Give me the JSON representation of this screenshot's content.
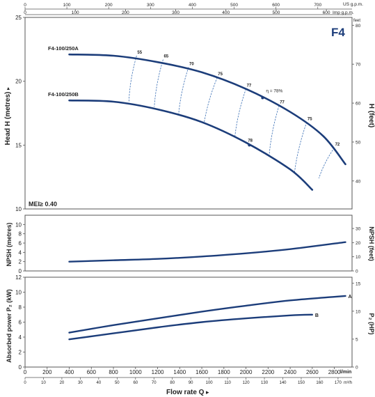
{
  "chart_data": {
    "type": "line",
    "model": "F4",
    "mei": "MEI≥ 0.40",
    "top_axes": {
      "us_label": "US g.p.m.",
      "us_ticks": [
        0,
        100,
        200,
        300,
        400,
        500,
        600,
        700
      ],
      "imp_label": "Imp g.p.m.",
      "imp_ticks": [
        0,
        100,
        200,
        300,
        400,
        500,
        600
      ]
    },
    "head_panel": {
      "ylabel": "Head H  (metres)",
      "ylabel_arrow": "▸",
      "ylim": [
        10,
        25
      ],
      "yticks": [
        10,
        15,
        20,
        25
      ],
      "y2label": "H (feet)",
      "y2_unit": "feet",
      "y2ticks": [
        40,
        50,
        60,
        70,
        80,
        90
      ],
      "efficiency_prefix": "η = 78%",
      "curves": [
        {
          "name": "F4-100/250A",
          "x": [
            400,
            800,
            1200,
            1600,
            2000,
            2400,
            2700,
            2900
          ],
          "y": [
            22.1,
            22.0,
            21.5,
            20.7,
            19.4,
            17.6,
            15.7,
            13.5
          ]
        },
        {
          "name": "F4-100/250B",
          "x": [
            400,
            800,
            1200,
            1600,
            2000,
            2400,
            2600
          ],
          "y": [
            18.5,
            18.4,
            17.8,
            16.8,
            15.2,
            13.1,
            11.5
          ]
        }
      ],
      "iso_efficiency": [
        {
          "label": "55",
          "top": [
            1010,
            22.0
          ],
          "bottom": [
            940,
            18.4
          ]
        },
        {
          "label": "65",
          "top": [
            1250,
            21.7
          ],
          "bottom": [
            1170,
            18.0
          ]
        },
        {
          "label": "70",
          "top": [
            1480,
            21.1
          ],
          "bottom": [
            1390,
            17.4
          ]
        },
        {
          "label": "75",
          "top": [
            1740,
            20.3
          ],
          "bottom": [
            1620,
            16.7
          ]
        },
        {
          "label": "77",
          "top": [
            2000,
            19.4
          ],
          "bottom": [
            1900,
            15.7
          ]
        },
        {
          "label": "77",
          "top": [
            2300,
            18.1
          ],
          "bottom": [
            2210,
            14.2
          ]
        },
        {
          "label": "75",
          "top": [
            2550,
            16.8
          ],
          "bottom": [
            2440,
            12.9
          ]
        },
        {
          "label": "72",
          "top": [
            2800,
            14.8
          ],
          "bottom": [
            2660,
            12.4
          ]
        }
      ],
      "markers": [
        {
          "label": "78",
          "at": [
            2150,
            18.7
          ],
          "curve": "A"
        },
        {
          "label": "78",
          "at": [
            2030,
            15.0
          ],
          "curve": "B"
        }
      ]
    },
    "npsh_panel": {
      "ylabel": "NPSH  (metres)",
      "y2label": "NPSH  (feet)",
      "ylim": [
        0,
        12
      ],
      "yticks": [
        0,
        2,
        4,
        6,
        8,
        10
      ],
      "y2ticks": [
        0,
        10,
        20,
        30
      ],
      "x": [
        400,
        800,
        1200,
        1600,
        2000,
        2400,
        2900
      ],
      "y": [
        2.0,
        2.3,
        2.6,
        3.1,
        3.8,
        4.7,
        6.2
      ]
    },
    "power_panel": {
      "ylabel": "Absorbed power  P₂  (kW)",
      "y2label": "P₂  (HP)",
      "ylim": [
        0,
        12
      ],
      "yticks": [
        0,
        2,
        4,
        6,
        8,
        10,
        12
      ],
      "y2ticks": [
        0,
        5,
        10,
        15
      ],
      "series": [
        {
          "name": "A",
          "x": [
            400,
            800,
            1200,
            1600,
            2000,
            2400,
            2900
          ],
          "y": [
            4.6,
            5.6,
            6.5,
            7.4,
            8.2,
            8.9,
            9.5
          ]
        },
        {
          "name": "B",
          "x": [
            400,
            800,
            1200,
            1600,
            2000,
            2400,
            2600
          ],
          "y": [
            3.7,
            4.5,
            5.3,
            6.0,
            6.5,
            6.9,
            7.0
          ]
        }
      ]
    },
    "x_axis": {
      "unit": "l/min",
      "ticks": [
        0,
        200,
        400,
        600,
        800,
        1000,
        1200,
        1400,
        1600,
        1800,
        2000,
        2200,
        2400,
        2600,
        2800
      ],
      "xlim": [
        0,
        2960
      ],
      "unit2": "m³/h",
      "ticks2": [
        0,
        10,
        20,
        30,
        40,
        50,
        60,
        70,
        80,
        90,
        100,
        110,
        120,
        130,
        140,
        150,
        160,
        170
      ],
      "title": "Flow rate  Q",
      "title_arrow": "▸"
    },
    "grid": false
  }
}
